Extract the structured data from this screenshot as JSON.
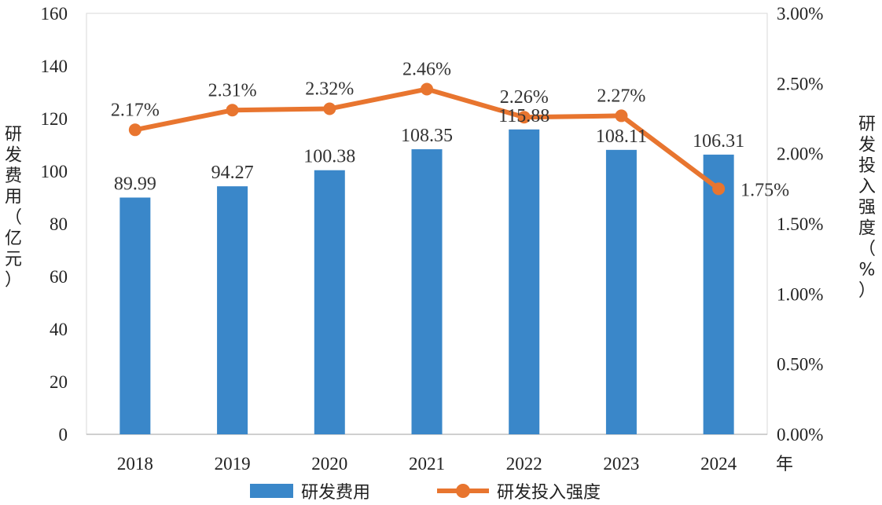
{
  "chart_data": {
    "type": "bar",
    "categories": [
      "2018",
      "2019",
      "2020",
      "2021",
      "2022",
      "2023",
      "2024"
    ],
    "series": [
      {
        "name": "研发费用",
        "type": "bar",
        "axis": "left",
        "values": [
          89.99,
          94.27,
          100.38,
          108.35,
          115.88,
          108.11,
          106.31
        ],
        "labels": [
          "89.99",
          "94.27",
          "100.38",
          "108.35",
          "115.88",
          "108.11",
          "106.31"
        ],
        "color": "#3A87C9"
      },
      {
        "name": "研发投入强度",
        "type": "line",
        "axis": "right",
        "values": [
          2.17,
          2.31,
          2.32,
          2.46,
          2.26,
          2.27,
          1.75
        ],
        "labels": [
          "2.17%",
          "2.31%",
          "2.32%",
          "2.46%",
          "2.26%",
          "2.27%",
          "1.75%"
        ],
        "color": "#E8752F"
      }
    ],
    "xlabel": "年",
    "ylabel": "研发费用（亿元）",
    "y2label": "研发投入强度（%）",
    "ylim": [
      0,
      160
    ],
    "y2lim": [
      0,
      3
    ],
    "yticks": [
      "0",
      "20",
      "40",
      "60",
      "80",
      "100",
      "120",
      "140",
      "160"
    ],
    "y2ticks": [
      "0.00%",
      "0.50%",
      "1.00%",
      "1.50%",
      "2.00%",
      "2.50%",
      "3.00%"
    ],
    "legend": "bottom",
    "grid": false
  }
}
